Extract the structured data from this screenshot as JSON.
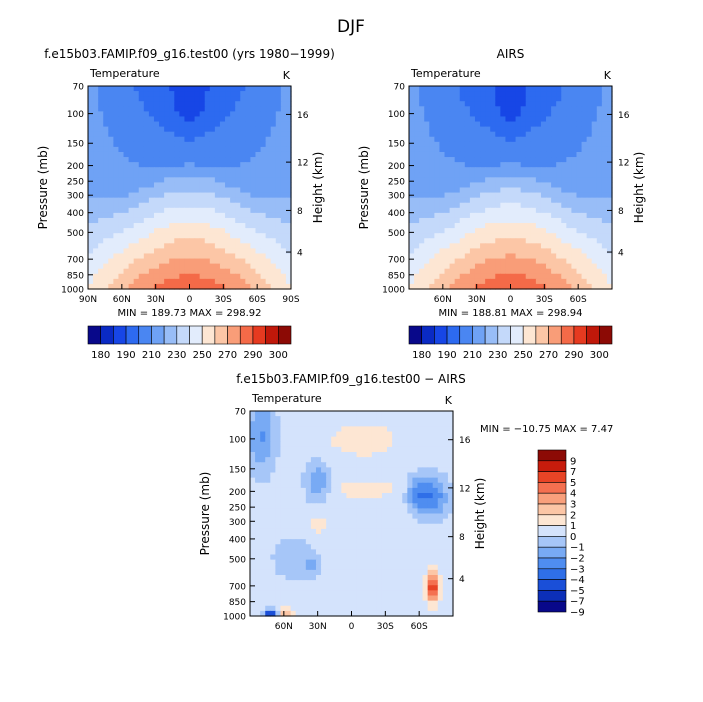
{
  "figure_title": "DJF",
  "chart_data": [
    {
      "type": "heatmap",
      "title": "f.e15b03.FAMIP.f09_g16.test00 (yrs 1980−1999)",
      "variable": "Temperature",
      "units": "K",
      "ylabel": "Pressure (mb)",
      "y2label": "Height (km)",
      "y_ticks": [
        "70",
        "100",
        "150",
        "200",
        "250",
        "300",
        "400",
        "500",
        "700",
        "850",
        "1000"
      ],
      "y2_ticks": [
        "16",
        "12",
        "8",
        "4"
      ],
      "x_ticks": [
        "90N",
        "60N",
        "30N",
        "0",
        "30S",
        "60S",
        "90S"
      ],
      "min_max": "MIN = 189.73   MAX = 298.92",
      "min": 189.73,
      "max": 298.92,
      "colorbar_labels": [
        "180",
        "190",
        "210",
        "230",
        "250",
        "270",
        "290",
        "300"
      ],
      "levels": [
        180,
        190,
        200,
        210,
        220,
        230,
        240,
        250,
        260,
        270,
        280,
        290,
        300
      ],
      "colors": [
        "#08088a",
        "#0a2ac4",
        "#1746e6",
        "#2d6af0",
        "#4a86f2",
        "#6fa2f5",
        "#98bdf7",
        "#c4d9fa",
        "#e2ecfc",
        "#fde6d3",
        "#fcc6a6",
        "#f99d78",
        "#f46a48",
        "#e63a20",
        "#c0180a",
        "#8c0a05"
      ],
      "field": "temp"
    },
    {
      "type": "heatmap",
      "title": "AIRS",
      "variable": "Temperature",
      "units": "K",
      "ylabel": "Pressure (mb)",
      "y2label": "Height (km)",
      "y_ticks": [
        "70",
        "100",
        "150",
        "200",
        "250",
        "300",
        "400",
        "500",
        "700",
        "850",
        "1000"
      ],
      "y2_ticks": [
        "16",
        "12",
        "8",
        "4"
      ],
      "x_ticks": [
        "60N",
        "30N",
        "0",
        "30S",
        "60S"
      ],
      "min_max": "MIN = 188.81   MAX = 298.94",
      "min": 188.81,
      "max": 298.94,
      "colorbar_labels": [
        "180",
        "190",
        "210",
        "230",
        "250",
        "270",
        "290",
        "300"
      ],
      "levels": [
        180,
        190,
        200,
        210,
        220,
        230,
        240,
        250,
        260,
        270,
        280,
        290,
        300
      ],
      "colors": [
        "#08088a",
        "#0a2ac4",
        "#1746e6",
        "#2d6af0",
        "#4a86f2",
        "#6fa2f5",
        "#98bdf7",
        "#c4d9fa",
        "#e2ecfc",
        "#fde6d3",
        "#fcc6a6",
        "#f99d78",
        "#f46a48",
        "#e63a20",
        "#c0180a",
        "#8c0a05"
      ],
      "field": "temp"
    },
    {
      "type": "heatmap",
      "title": "f.e15b03.FAMIP.f09_g16.test00 − AIRS",
      "variable": "Temperature",
      "units": "K",
      "ylabel": "Pressure (mb)",
      "y2label": "Height (km)",
      "y_ticks": [
        "70",
        "100",
        "150",
        "200",
        "250",
        "300",
        "400",
        "500",
        "700",
        "850",
        "1000"
      ],
      "y2_ticks": [
        "16",
        "12",
        "8",
        "4"
      ],
      "x_ticks": [
        "60N",
        "30N",
        "0",
        "30S",
        "60S"
      ],
      "min_max": "MIN = −10.75   MAX =    7.47",
      "min": -10.75,
      "max": 7.47,
      "colorbar_labels": [
        "9",
        "7",
        "5",
        "4",
        "3",
        "2",
        "1",
        "0",
        "−1",
        "−2",
        "−3",
        "−4",
        "−5",
        "−7",
        "−9"
      ],
      "levels": [
        -9,
        -7,
        -5,
        -4,
        -3,
        -2,
        -1,
        0,
        1,
        2,
        3,
        4,
        5,
        7,
        9
      ],
      "colors": [
        "#08088a",
        "#0c2fb8",
        "#1a4fd8",
        "#2f6fe8",
        "#4f8df0",
        "#78aaf4",
        "#a6c6f8",
        "#d4e3fc",
        "#fde6d3",
        "#fcc6a6",
        "#f9a07c",
        "#f47050",
        "#e84426",
        "#c81c0c",
        "#8c0a05"
      ],
      "field": "diff"
    }
  ]
}
